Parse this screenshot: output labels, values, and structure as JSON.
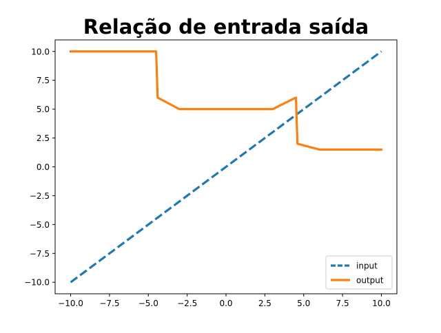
{
  "chart_data": {
    "type": "line",
    "title": "Relação de entrada saída",
    "xlabel": "",
    "ylabel": "",
    "xlim": [
      -11,
      11
    ],
    "ylim": [
      -11,
      11
    ],
    "xticks": [
      -10.0,
      -7.5,
      -5.0,
      -2.5,
      0.0,
      2.5,
      5.0,
      7.5,
      10.0
    ],
    "xtick_labels": [
      "−10.0",
      "−7.5",
      "−5.0",
      "−2.5",
      "0.0",
      "2.5",
      "5.0",
      "7.5",
      "10.0"
    ],
    "yticks": [
      -10.0,
      -7.5,
      -5.0,
      -2.5,
      0.0,
      2.5,
      5.0,
      7.5,
      10.0
    ],
    "ytick_labels": [
      "−10.0",
      "−7.5",
      "−5.0",
      "−2.5",
      "0.0",
      "2.5",
      "5.0",
      "7.5",
      "10.0"
    ],
    "grid": false,
    "legend": {
      "position": "lower-right",
      "entries": [
        "input",
        "output"
      ]
    },
    "series": [
      {
        "name": "input",
        "color": "#1f77b4",
        "style": "dashed",
        "x": [
          -10,
          10
        ],
        "y": [
          -10,
          10
        ]
      },
      {
        "name": "output",
        "color": "#ff7f0e",
        "style": "solid",
        "x": [
          -10,
          -4.5,
          -4.4,
          -3,
          3,
          4.5,
          4.6,
          6,
          10
        ],
        "y": [
          10,
          10,
          6,
          5,
          5,
          6,
          2,
          1.5,
          1.5
        ]
      }
    ]
  }
}
